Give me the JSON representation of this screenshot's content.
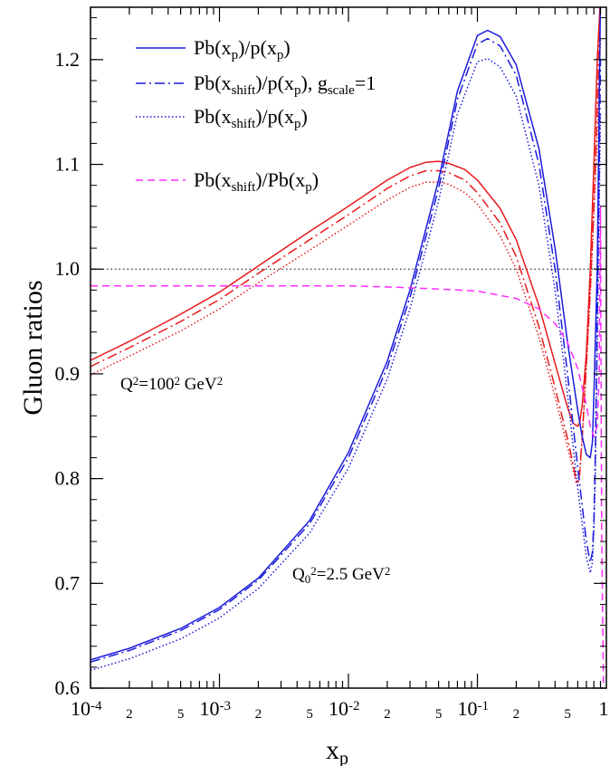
{
  "chart_data": {
    "type": "line",
    "ylabel": "Gluon ratios",
    "xlabel": {
      "main": "x",
      "sub": "p"
    },
    "x_scale": "log",
    "xlim": [
      0.0001,
      1
    ],
    "ylim": [
      0.6,
      1.25
    ],
    "x_ticks": [
      {
        "value": 0.0001,
        "base": "10",
        "exp": "-4"
      },
      {
        "value": 0.001,
        "base": "10",
        "exp": "-3"
      },
      {
        "value": 0.01,
        "base": "10",
        "exp": "-2"
      },
      {
        "value": 0.1,
        "base": "10",
        "exp": "-1"
      },
      {
        "value": 1,
        "base": "1",
        "exp": ""
      }
    ],
    "x_minor_labels": [
      {
        "value": 0.0002,
        "label": "2"
      },
      {
        "value": 0.0005,
        "label": "5"
      },
      {
        "value": 0.002,
        "label": "2"
      },
      {
        "value": 0.005,
        "label": "5"
      },
      {
        "value": 0.02,
        "label": "2"
      },
      {
        "value": 0.05,
        "label": "5"
      },
      {
        "value": 0.2,
        "label": "2"
      },
      {
        "value": 0.5,
        "label": "5"
      }
    ],
    "y_ticks": [
      "0.6",
      "0.7",
      "0.8",
      "0.9",
      "1.0",
      "1.1",
      "1.2"
    ],
    "reference_line": {
      "y": 1.0,
      "style": "dotted"
    },
    "colors": {
      "q100": "#e8191c",
      "q25": "#1a1adc",
      "ratio": "#ff2cff"
    },
    "legend": {
      "placement": "top-left",
      "entries": [
        {
          "style": "solid",
          "color": "#1a1adc",
          "parts": [
            [
              "Pb(x",
              ""
            ],
            [
              "p",
              "sub"
            ],
            [
              ")/p(x",
              ""
            ],
            [
              "p",
              "sub"
            ],
            [
              ")",
              ""
            ]
          ]
        },
        {
          "style": "dashdot",
          "color": "#1a1adc",
          "parts": [
            [
              "Pb(x",
              ""
            ],
            [
              "shift",
              "sub"
            ],
            [
              ")/p(x",
              ""
            ],
            [
              "p",
              "sub"
            ],
            [
              "), g",
              ""
            ],
            [
              "scale",
              "sub"
            ],
            [
              "=1",
              ""
            ]
          ]
        },
        {
          "style": "dotted",
          "color": "#1a1adc",
          "parts": [
            [
              "Pb(x",
              ""
            ],
            [
              "shift",
              "sub"
            ],
            [
              ")/p(x",
              ""
            ],
            [
              "p",
              "sub"
            ],
            [
              ")",
              ""
            ]
          ]
        },
        {
          "style": "dashed",
          "color": "#ff2cff",
          "parts": [
            [
              "Pb(x",
              ""
            ],
            [
              "shift",
              "sub"
            ],
            [
              ")/Pb(x",
              ""
            ],
            [
              "p",
              "sub"
            ],
            [
              ")",
              ""
            ]
          ]
        }
      ]
    },
    "annotations": [
      {
        "id": "q100",
        "parts": [
          [
            "Q",
            ""
          ],
          [
            "2",
            "sup"
          ],
          [
            "=100",
            ""
          ],
          [
            "2",
            "sup"
          ],
          [
            " GeV",
            ""
          ],
          [
            "2",
            "sup"
          ]
        ]
      },
      {
        "id": "q25",
        "parts": [
          [
            "Q",
            ""
          ],
          [
            "0",
            "sub"
          ],
          [
            "2",
            "sup"
          ],
          [
            "=2.5 GeV",
            ""
          ],
          [
            "2",
            "sup"
          ]
        ]
      }
    ],
    "series": [
      {
        "group": "Q2=100^2 GeV^2",
        "style": "solid",
        "color": "#e8191c",
        "x": [
          0.0001,
          0.0002,
          0.0005,
          0.001,
          0.002,
          0.005,
          0.01,
          0.02,
          0.03,
          0.04,
          0.05,
          0.06,
          0.08,
          0.1,
          0.15,
          0.2,
          0.3,
          0.4,
          0.5,
          0.55,
          0.6,
          0.62,
          0.65,
          0.7,
          0.75,
          0.8,
          0.85,
          0.9
        ],
        "y": [
          0.913,
          0.931,
          0.957,
          0.978,
          1.003,
          1.036,
          1.06,
          1.085,
          1.097,
          1.102,
          1.103,
          1.101,
          1.095,
          1.085,
          1.058,
          1.028,
          0.965,
          0.91,
          0.868,
          0.853,
          0.85,
          0.853,
          0.87,
          0.92,
          1.0,
          1.1,
          1.2,
          1.26
        ]
      },
      {
        "group": "Q2=100^2 GeV^2",
        "style": "dashdot",
        "color": "#e8191c",
        "x": [
          0.0001,
          0.0002,
          0.0005,
          0.001,
          0.002,
          0.005,
          0.01,
          0.02,
          0.03,
          0.04,
          0.05,
          0.06,
          0.08,
          0.1,
          0.15,
          0.2,
          0.3,
          0.4,
          0.5,
          0.55,
          0.58,
          0.6,
          0.62,
          0.65,
          0.7,
          0.75,
          0.8,
          0.85,
          0.9
        ],
        "y": [
          0.907,
          0.925,
          0.95,
          0.971,
          0.996,
          1.028,
          1.052,
          1.077,
          1.089,
          1.094,
          1.094,
          1.092,
          1.085,
          1.073,
          1.044,
          1.012,
          0.945,
          0.887,
          0.838,
          0.815,
          0.8,
          0.797,
          0.805,
          0.84,
          0.91,
          0.98,
          1.06,
          1.15,
          1.26
        ]
      },
      {
        "group": "Q2=100^2 GeV^2",
        "style": "dotted",
        "color": "#e8191c",
        "x": [
          0.0001,
          0.0002,
          0.0005,
          0.001,
          0.002,
          0.005,
          0.01,
          0.02,
          0.03,
          0.04,
          0.05,
          0.06,
          0.08,
          0.1,
          0.15,
          0.2,
          0.3,
          0.4,
          0.5,
          0.55,
          0.58,
          0.6,
          0.62,
          0.65,
          0.7,
          0.75,
          0.8,
          0.85,
          0.9
        ],
        "y": [
          0.899,
          0.917,
          0.941,
          0.962,
          0.987,
          1.018,
          1.042,
          1.066,
          1.078,
          1.083,
          1.083,
          1.081,
          1.073,
          1.062,
          1.032,
          1.0,
          0.935,
          0.878,
          0.83,
          0.81,
          0.797,
          0.794,
          0.802,
          0.838,
          0.905,
          0.975,
          1.05,
          1.13,
          1.22
        ]
      },
      {
        "group": "Q0^2=2.5 GeV^2",
        "style": "solid",
        "color": "#1a1adc",
        "x": [
          0.0001,
          0.0002,
          0.0005,
          0.001,
          0.002,
          0.005,
          0.01,
          0.02,
          0.03,
          0.05,
          0.07,
          0.1,
          0.12,
          0.15,
          0.2,
          0.3,
          0.4,
          0.5,
          0.6,
          0.65,
          0.7,
          0.75,
          0.78,
          0.8,
          0.85,
          0.9
        ],
        "y": [
          0.627,
          0.638,
          0.657,
          0.677,
          0.705,
          0.76,
          0.825,
          0.912,
          0.98,
          1.085,
          1.17,
          1.223,
          1.228,
          1.222,
          1.195,
          1.115,
          1.02,
          0.93,
          0.865,
          0.84,
          0.823,
          0.82,
          0.835,
          0.88,
          1.0,
          1.26
        ]
      },
      {
        "group": "Q0^2=2.5 GeV^2",
        "style": "dashdot",
        "color": "#1a1adc",
        "x": [
          0.0001,
          0.0002,
          0.0005,
          0.001,
          0.002,
          0.005,
          0.01,
          0.02,
          0.03,
          0.05,
          0.07,
          0.1,
          0.12,
          0.15,
          0.2,
          0.3,
          0.4,
          0.5,
          0.6,
          0.7,
          0.75,
          0.78,
          0.8,
          0.82,
          0.85,
          0.88,
          0.9
        ],
        "y": [
          0.625,
          0.636,
          0.655,
          0.675,
          0.703,
          0.757,
          0.82,
          0.906,
          0.973,
          1.077,
          1.162,
          1.215,
          1.22,
          1.213,
          1.185,
          1.1,
          1.0,
          0.9,
          0.81,
          0.74,
          0.72,
          0.73,
          0.76,
          0.82,
          0.95,
          1.1,
          1.2
        ]
      },
      {
        "group": "Q0^2=2.5 GeV^2",
        "style": "dotted",
        "color": "#1a1adc",
        "x": [
          0.0001,
          0.0002,
          0.0005,
          0.001,
          0.002,
          0.005,
          0.01,
          0.02,
          0.03,
          0.05,
          0.07,
          0.1,
          0.12,
          0.15,
          0.2,
          0.3,
          0.4,
          0.5,
          0.6,
          0.7,
          0.75,
          0.78,
          0.8,
          0.82,
          0.85,
          0.88,
          0.9
        ],
        "y": [
          0.617,
          0.628,
          0.647,
          0.667,
          0.695,
          0.748,
          0.81,
          0.895,
          0.962,
          1.065,
          1.148,
          1.198,
          1.201,
          1.193,
          1.165,
          1.08,
          0.98,
          0.88,
          0.79,
          0.725,
          0.71,
          0.72,
          0.75,
          0.8,
          0.92,
          1.06,
          1.15
        ]
      },
      {
        "group": "ratio",
        "style": "dashed",
        "color": "#ff2cff",
        "x": [
          0.0001,
          0.001,
          0.005,
          0.01,
          0.02,
          0.05,
          0.1,
          0.2,
          0.3,
          0.4,
          0.5,
          0.6,
          0.7,
          0.75,
          0.8,
          0.85,
          0.88,
          0.9,
          0.92,
          0.95
        ],
        "y": [
          0.984,
          0.984,
          0.984,
          0.984,
          0.983,
          0.981,
          0.979,
          0.972,
          0.962,
          0.948,
          0.93,
          0.905,
          0.87,
          0.85,
          0.84,
          0.85,
          0.9,
          1.06,
          0.75,
          0.6
        ]
      }
    ]
  }
}
